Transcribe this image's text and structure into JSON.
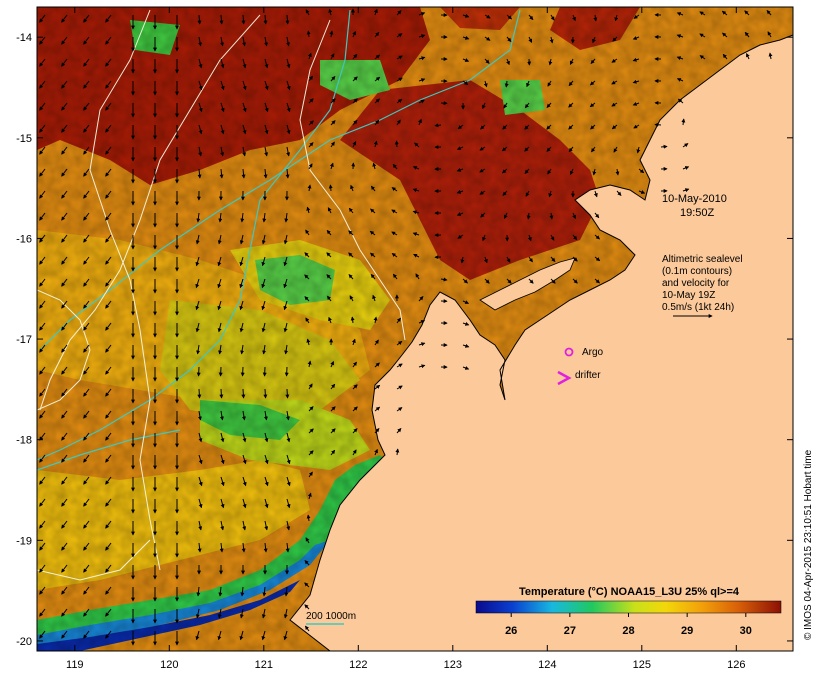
{
  "map": {
    "lat_ticks": [
      "-14",
      "-15",
      "-16",
      "-17",
      "-18",
      "-19",
      "-20"
    ],
    "lon_ticks": [
      "119",
      "120",
      "121",
      "122",
      "123",
      "124",
      "125",
      "126"
    ],
    "lat_range": [
      -20.1,
      -13.7
    ],
    "lon_range": [
      118.6,
      126.6
    ]
  },
  "annotations": {
    "date": "10-May-2010",
    "time": "19:50Z",
    "legend_lines": [
      "Altimetric sealevel",
      "(0.1m contours)",
      "and velocity for",
      "10-May 19Z",
      "0.5m/s (1kt 24h)"
    ],
    "argo_label": "Argo",
    "drifter_label": "drifter",
    "bathy_label": "200  1000m"
  },
  "colorbar": {
    "title": "Temperature (°C) NOAA15_L3U 25% ql>=4",
    "ticks": [
      "26",
      "27",
      "28",
      "29",
      "30"
    ],
    "range": [
      25.4,
      30.6
    ]
  },
  "credit": "© IMOS 04-Apr-2015 23:10:51 Hobart time",
  "colors": {
    "land": "#fbc99a",
    "ocean_warm": "#e08a10",
    "ocean_hot": "#a51a05",
    "ocean_mid": "#f2b80a",
    "ocean_cool": "#c8e01a",
    "coast_green": "#30c840",
    "coast_blue": "#0a3fc8",
    "bathy_cyan": "#40c8c0",
    "argo_magenta": "#e020e0"
  }
}
